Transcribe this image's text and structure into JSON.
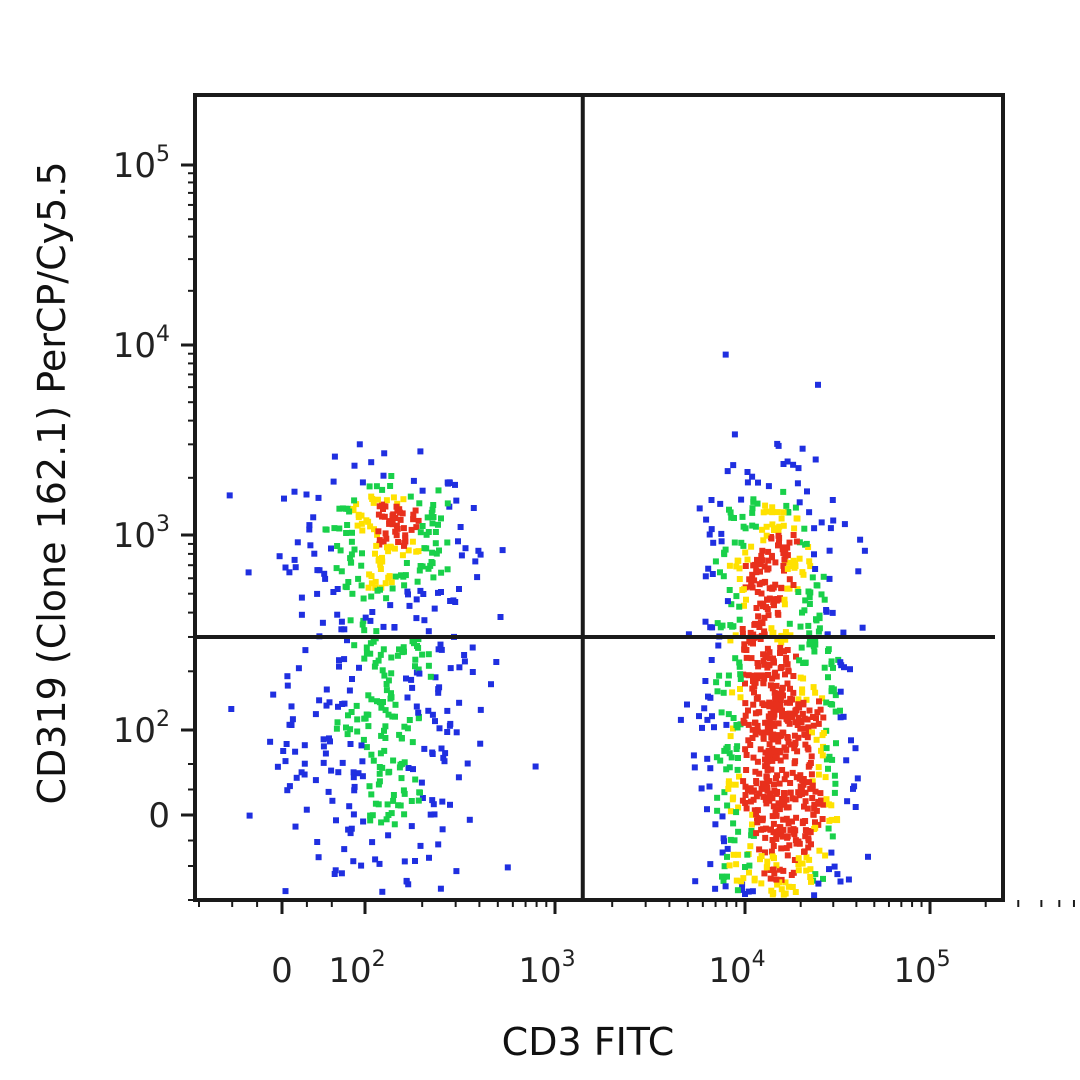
{
  "chart_data": {
    "type": "scatter",
    "style": "pseudocolor density dot plot",
    "xlabel": "CD3 FITC",
    "ylabel": "CD319 (Clone 162.1) PerCP/Cy5.5",
    "x_scale": "biexponential",
    "y_scale": "biexponential",
    "x_ticks": [
      {
        "base": "0",
        "exp": "",
        "value": 0
      },
      {
        "base": "10",
        "exp": "2",
        "value": 100
      },
      {
        "base": "10",
        "exp": "3",
        "value": 1000
      },
      {
        "base": "10",
        "exp": "4",
        "value": 10000
      },
      {
        "base": "10",
        "exp": "5",
        "value": 100000
      }
    ],
    "y_ticks": [
      {
        "base": "0",
        "exp": "",
        "value": 0
      },
      {
        "base": "10",
        "exp": "2",
        "value": 100
      },
      {
        "base": "10",
        "exp": "3",
        "value": 1000
      },
      {
        "base": "10",
        "exp": "4",
        "value": 10000
      },
      {
        "base": "10",
        "exp": "5",
        "value": 100000
      }
    ],
    "quadrant_gate": {
      "x": 1400,
      "y": 300
    },
    "density_colors": [
      "#1f2fe0",
      "#19d04a",
      "#ffe100",
      "#e8301c"
    ],
    "populations": [
      {
        "x_center": 130,
        "y_center": 950,
        "x_spread_decades": 0.22,
        "y_spread_decades": 0.2,
        "count": 230
      },
      {
        "x_center": 120,
        "y_center": 100,
        "x_spread_decades": 0.25,
        "y_spread_decades": 0.45,
        "count": 330
      },
      {
        "x_center": 15000,
        "y_center": 60,
        "x_spread_decades": 0.18,
        "y_spread_decades": 0.6,
        "count": 950
      },
      {
        "x_center": 14000,
        "y_center": 800,
        "x_spread_decades": 0.16,
        "y_spread_decades": 0.25,
        "count": 140
      }
    ]
  }
}
